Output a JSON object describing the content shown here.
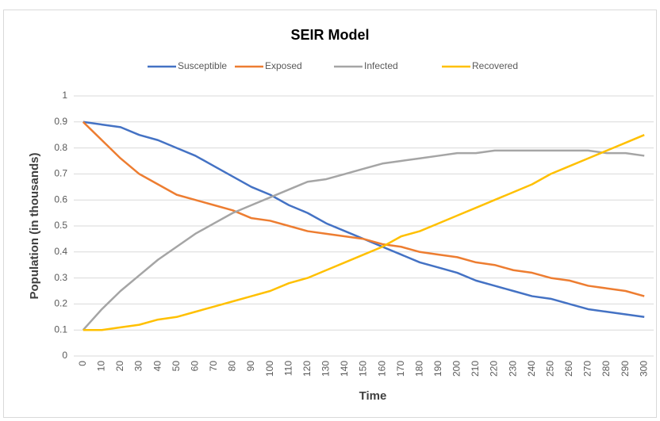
{
  "chart_data": {
    "type": "line",
    "title": "SEIR Model",
    "x_label": "Time",
    "y_label": "Population  (in thousands)",
    "categories": [
      0,
      10,
      20,
      30,
      40,
      50,
      60,
      70,
      80,
      90,
      100,
      110,
      120,
      130,
      140,
      150,
      160,
      170,
      180,
      190,
      200,
      210,
      220,
      230,
      240,
      250,
      260,
      270,
      280,
      290,
      300
    ],
    "series": [
      {
        "name": "Susceptible",
        "color": "#4472c4",
        "values": [
          0.9,
          0.89,
          0.88,
          0.85,
          0.83,
          0.8,
          0.77,
          0.73,
          0.69,
          0.65,
          0.62,
          0.58,
          0.55,
          0.51,
          0.48,
          0.45,
          0.42,
          0.39,
          0.36,
          0.34,
          0.32,
          0.29,
          0.27,
          0.25,
          0.23,
          0.22,
          0.2,
          0.18,
          0.17,
          0.16,
          0.15
        ]
      },
      {
        "name": "Exposed",
        "color": "#ed7d31",
        "values": [
          0.9,
          0.83,
          0.76,
          0.7,
          0.66,
          0.62,
          0.6,
          0.58,
          0.56,
          0.53,
          0.52,
          0.5,
          0.48,
          0.47,
          0.46,
          0.45,
          0.43,
          0.42,
          0.4,
          0.39,
          0.38,
          0.36,
          0.35,
          0.33,
          0.32,
          0.3,
          0.29,
          0.27,
          0.26,
          0.25,
          0.23
        ]
      },
      {
        "name": "Infected",
        "color": "#a5a5a5",
        "values": [
          0.1,
          0.18,
          0.25,
          0.31,
          0.37,
          0.42,
          0.47,
          0.51,
          0.55,
          0.58,
          0.61,
          0.64,
          0.67,
          0.68,
          0.7,
          0.72,
          0.74,
          0.75,
          0.76,
          0.77,
          0.78,
          0.78,
          0.79,
          0.79,
          0.79,
          0.79,
          0.79,
          0.79,
          0.78,
          0.78,
          0.77
        ]
      },
      {
        "name": "Recovered",
        "color": "#ffc000",
        "values": [
          0.1,
          0.1,
          0.11,
          0.12,
          0.14,
          0.15,
          0.17,
          0.19,
          0.21,
          0.23,
          0.25,
          0.28,
          0.3,
          0.33,
          0.36,
          0.39,
          0.42,
          0.46,
          0.48,
          0.51,
          0.54,
          0.57,
          0.6,
          0.63,
          0.66,
          0.7,
          0.73,
          0.76,
          0.79,
          0.82,
          0.85
        ]
      }
    ],
    "ylim": [
      0,
      1
    ],
    "yticks": [
      0,
      0.1,
      0.2,
      0.3,
      0.4,
      0.5,
      0.6,
      0.7,
      0.8,
      0.9,
      1
    ],
    "grid": true,
    "legend": "top"
  }
}
